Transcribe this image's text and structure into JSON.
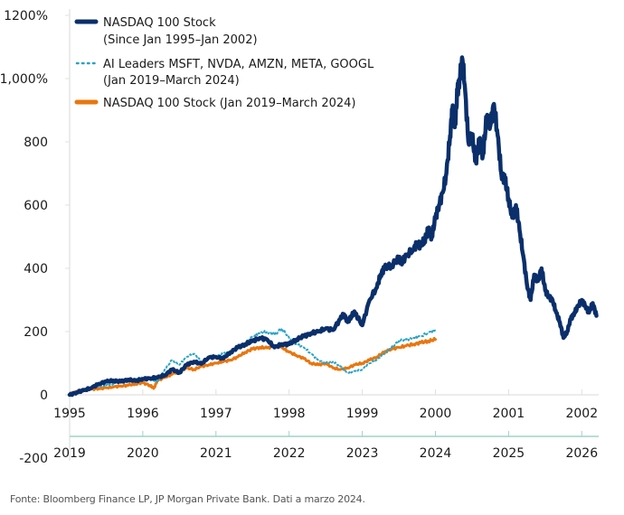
{
  "chart_data": {
    "type": "line",
    "title": "",
    "ylabel": "",
    "ylim": [
      -200,
      1200
    ],
    "yticks": [
      {
        "value": 1200,
        "label": "1200%"
      },
      {
        "value": 1000,
        "label": "1,000%"
      },
      {
        "value": 800,
        "label": "800"
      },
      {
        "value": 600,
        "label": "600"
      },
      {
        "value": 400,
        "label": "400"
      },
      {
        "value": 200,
        "label": "200"
      },
      {
        "value": 0,
        "label": "0"
      },
      {
        "value": -200,
        "label": "-200"
      }
    ],
    "x_axis_top": {
      "range": [
        1995,
        2002.4
      ],
      "ticks": [
        "1995",
        "1996",
        "1997",
        "1998",
        "1999",
        "2000",
        "2001",
        "2002"
      ]
    },
    "x_axis_bottom": {
      "range": [
        2019,
        2026.4
      ],
      "ticks": [
        "2019",
        "2020",
        "2021",
        "2022",
        "2023",
        "2024",
        "2025",
        "2026"
      ]
    },
    "legend": {
      "placement": "top-left",
      "entries": [
        {
          "line1": "NASDAQ 100 Stock",
          "line2": "(Since Jan 1995–Jan 2002)",
          "style": "solid-thick",
          "color": "#0a2f6b"
        },
        {
          "line1": "AI Leaders MSFT, NVDA, AMZN, META, GOOGL",
          "line2": "(Jan 2019–March 2024)",
          "style": "dotted",
          "color": "#2aa3c4"
        },
        {
          "line1": "NASDAQ 100 Stock (Jan 2019–March 2024)",
          "line2": "",
          "style": "solid",
          "color": "#e8760f"
        }
      ]
    },
    "series": [
      {
        "name": "NASDAQ 100 Stock (Since Jan 1995–Jan 2002)",
        "axis": "top",
        "color": "#0a2f6b",
        "x": [
          1995.0,
          1995.1,
          1995.2,
          1995.3,
          1995.4,
          1995.5,
          1995.6,
          1995.7,
          1995.8,
          1995.9,
          1996.0,
          1996.1,
          1996.2,
          1996.3,
          1996.4,
          1996.5,
          1996.6,
          1996.7,
          1996.8,
          1996.9,
          1997.0,
          1997.1,
          1997.2,
          1997.3,
          1997.4,
          1997.5,
          1997.6,
          1997.7,
          1997.8,
          1997.9,
          1998.0,
          1998.1,
          1998.2,
          1998.3,
          1998.4,
          1998.5,
          1998.6,
          1998.7,
          1998.75,
          1998.8,
          1998.85,
          1998.9,
          1999.0,
          1999.1,
          1999.2,
          1999.25,
          1999.3,
          1999.4,
          1999.5,
          1999.55,
          1999.6,
          1999.7,
          1999.75,
          1999.8,
          1999.85,
          1999.9,
          1999.95,
          2000.0,
          2000.05,
          2000.1,
          2000.15,
          2000.2,
          2000.23,
          2000.27,
          2000.3,
          2000.33,
          2000.37,
          2000.4,
          2000.45,
          2000.5,
          2000.55,
          2000.6,
          2000.65,
          2000.7,
          2000.75,
          2000.8,
          2000.85,
          2000.9,
          2000.95,
          2001.0,
          2001.05,
          2001.1,
          2001.15,
          2001.2,
          2001.25,
          2001.3,
          2001.35,
          2001.4,
          2001.45,
          2001.5,
          2001.55,
          2001.6,
          2001.65,
          2001.7,
          2001.75,
          2001.8,
          2001.85,
          2001.9,
          2001.95,
          2002.0,
          2002.05,
          2002.1,
          2002.15,
          2002.2
        ],
        "y": [
          0,
          8,
          15,
          22,
          35,
          42,
          45,
          42,
          48,
          44,
          50,
          52,
          55,
          62,
          80,
          70,
          95,
          105,
          98,
          118,
          120,
          115,
          135,
          150,
          160,
          170,
          180,
          175,
          150,
          160,
          160,
          175,
          185,
          195,
          200,
          210,
          205,
          240,
          255,
          230,
          250,
          260,
          220,
          300,
          340,
          380,
          400,
          410,
          430,
          420,
          440,
          460,
          480,
          470,
          490,
          520,
          500,
          560,
          600,
          640,
          700,
          820,
          900,
          860,
          960,
          1000,
          1060,
          980,
          800,
          820,
          740,
          800,
          760,
          880,
          850,
          920,
          820,
          700,
          680,
          620,
          560,
          600,
          520,
          440,
          350,
          300,
          380,
          360,
          400,
          330,
          310,
          300,
          260,
          230,
          180,
          200,
          240,
          260,
          280,
          300,
          280,
          260,
          290,
          250
        ]
      },
      {
        "name": "AI Leaders MSFT, NVDA, AMZN, META, GOOGL (Jan 2019–March 2024)",
        "axis": "bottom",
        "color": "#2aa3c4",
        "x": [
          2019.0,
          2019.1,
          2019.2,
          2019.3,
          2019.4,
          2019.5,
          2019.6,
          2019.7,
          2019.8,
          2019.9,
          2020.0,
          2020.1,
          2020.2,
          2020.3,
          2020.4,
          2020.5,
          2020.6,
          2020.7,
          2020.8,
          2020.9,
          2021.0,
          2021.1,
          2021.2,
          2021.3,
          2021.4,
          2021.5,
          2021.6,
          2021.7,
          2021.8,
          2021.9,
          2022.0,
          2022.1,
          2022.2,
          2022.3,
          2022.4,
          2022.5,
          2022.6,
          2022.7,
          2022.8,
          2022.9,
          2023.0,
          2023.1,
          2023.2,
          2023.3,
          2023.4,
          2023.5,
          2023.6,
          2023.7,
          2023.8,
          2023.9,
          2024.0
        ],
        "y": [
          0,
          10,
          18,
          25,
          28,
          30,
          35,
          40,
          42,
          50,
          55,
          48,
          40,
          80,
          110,
          95,
          120,
          130,
          105,
          115,
          120,
          130,
          135,
          150,
          165,
          185,
          195,
          200,
          190,
          210,
          180,
          160,
          150,
          130,
          110,
          100,
          105,
          90,
          70,
          75,
          80,
          100,
          110,
          130,
          150,
          170,
          175,
          180,
          185,
          195,
          205
        ]
      },
      {
        "name": "NASDAQ 100 Stock (Jan 2019–March 2024)",
        "axis": "bottom",
        "color": "#e8760f",
        "x": [
          2019.0,
          2019.1,
          2019.2,
          2019.3,
          2019.4,
          2019.5,
          2019.6,
          2019.7,
          2019.8,
          2019.9,
          2020.0,
          2020.1,
          2020.15,
          2020.2,
          2020.3,
          2020.4,
          2020.5,
          2020.6,
          2020.7,
          2020.8,
          2020.9,
          2021.0,
          2021.1,
          2021.2,
          2021.3,
          2021.4,
          2021.5,
          2021.6,
          2021.7,
          2021.8,
          2021.9,
          2022.0,
          2022.1,
          2022.2,
          2022.3,
          2022.4,
          2022.5,
          2022.6,
          2022.7,
          2022.8,
          2022.9,
          2023.0,
          2023.1,
          2023.2,
          2023.3,
          2023.4,
          2023.5,
          2023.6,
          2023.7,
          2023.8,
          2023.9,
          2024.0
        ],
        "y": [
          0,
          10,
          15,
          18,
          20,
          22,
          25,
          28,
          30,
          35,
          38,
          30,
          20,
          45,
          55,
          65,
          75,
          85,
          80,
          90,
          95,
          100,
          105,
          110,
          120,
          135,
          145,
          150,
          148,
          155,
          150,
          135,
          125,
          115,
          100,
          95,
          100,
          85,
          80,
          85,
          95,
          100,
          110,
          120,
          135,
          145,
          150,
          155,
          160,
          165,
          170,
          175
        ]
      }
    ]
  },
  "source_note": "Fonte: Bloomberg Finance LP, JP Morgan Private Bank. Dati a marzo 2024."
}
